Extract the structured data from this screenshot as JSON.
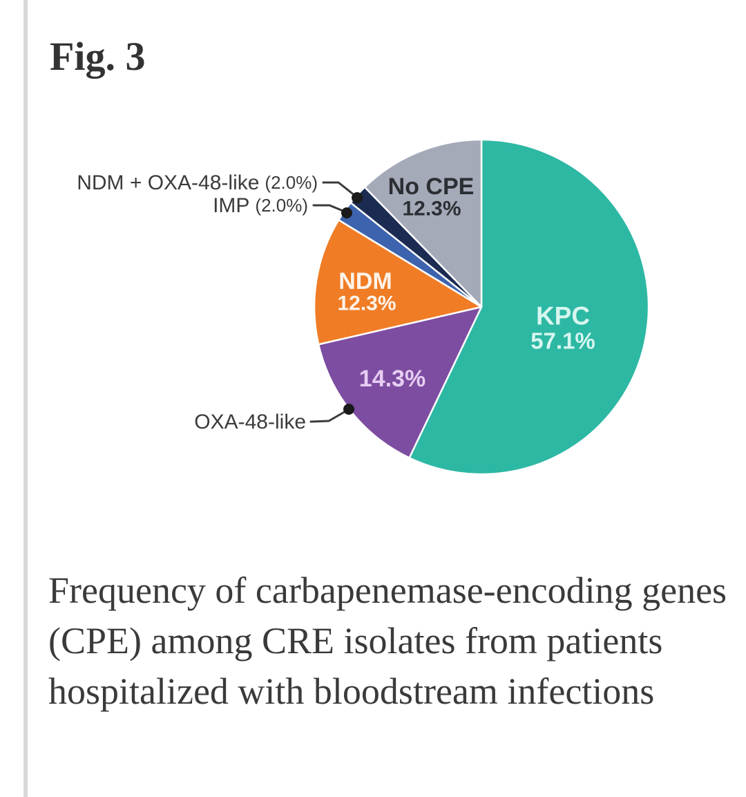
{
  "figure": {
    "label": "Fig. 3",
    "caption": "Frequency of carbapenemase-encoding genes (CPE) among CRE isolates from patients hospitalized with bloodstream infections"
  },
  "chart_data": {
    "type": "pie",
    "title": "",
    "unit": "%",
    "direction": "clockwise",
    "start_angle_deg_from_top": 0,
    "series": [
      {
        "name": "KPC",
        "value": 57.1,
        "color": "#2db8a4"
      },
      {
        "name": "OXA-48-like",
        "value": 14.3,
        "color": "#7c4da1"
      },
      {
        "name": "NDM",
        "value": 12.3,
        "color": "#f07d26"
      },
      {
        "name": "IMP",
        "value": 2.0,
        "color": "#3d63ae"
      },
      {
        "name": "NDM + OXA-48-like",
        "value": 2.0,
        "color": "#1b2b52"
      },
      {
        "name": "No CPE",
        "value": 12.3,
        "color": "#a5aab9"
      }
    ],
    "inside_labels": [
      {
        "text": "KPC",
        "pct": "57.1%",
        "color": "#d7f6ef"
      },
      {
        "text": "No CPE",
        "pct": "12.3%",
        "color": "#2b2e33"
      },
      {
        "text": "NDM",
        "pct": "12.3%",
        "color": "#fdf3ea"
      },
      {
        "text": "14.3%",
        "pct": "",
        "color": "#e6cef2"
      }
    ],
    "callouts": [
      {
        "text": "NDM + OXA-48-like",
        "pct": "(2.0%)"
      },
      {
        "text": "IMP",
        "pct": "(2.0%)"
      },
      {
        "text": "OXA-48-like",
        "pct": ""
      }
    ]
  },
  "pie_labels": {
    "kpc_name": "KPC",
    "kpc_pct": "57.1%",
    "no_cpe_name": "No CPE",
    "no_cpe_pct": "12.3%",
    "ndm_name": "NDM",
    "ndm_pct": "12.3%",
    "oxa48_pct": "14.3%",
    "callout_ndm_oxa48": "NDM + OXA-48-like",
    "callout_ndm_oxa48_pct": "(2.0%)",
    "callout_imp": "IMP",
    "callout_imp_pct": "(2.0%)",
    "callout_oxa48": "OXA-48-like"
  }
}
